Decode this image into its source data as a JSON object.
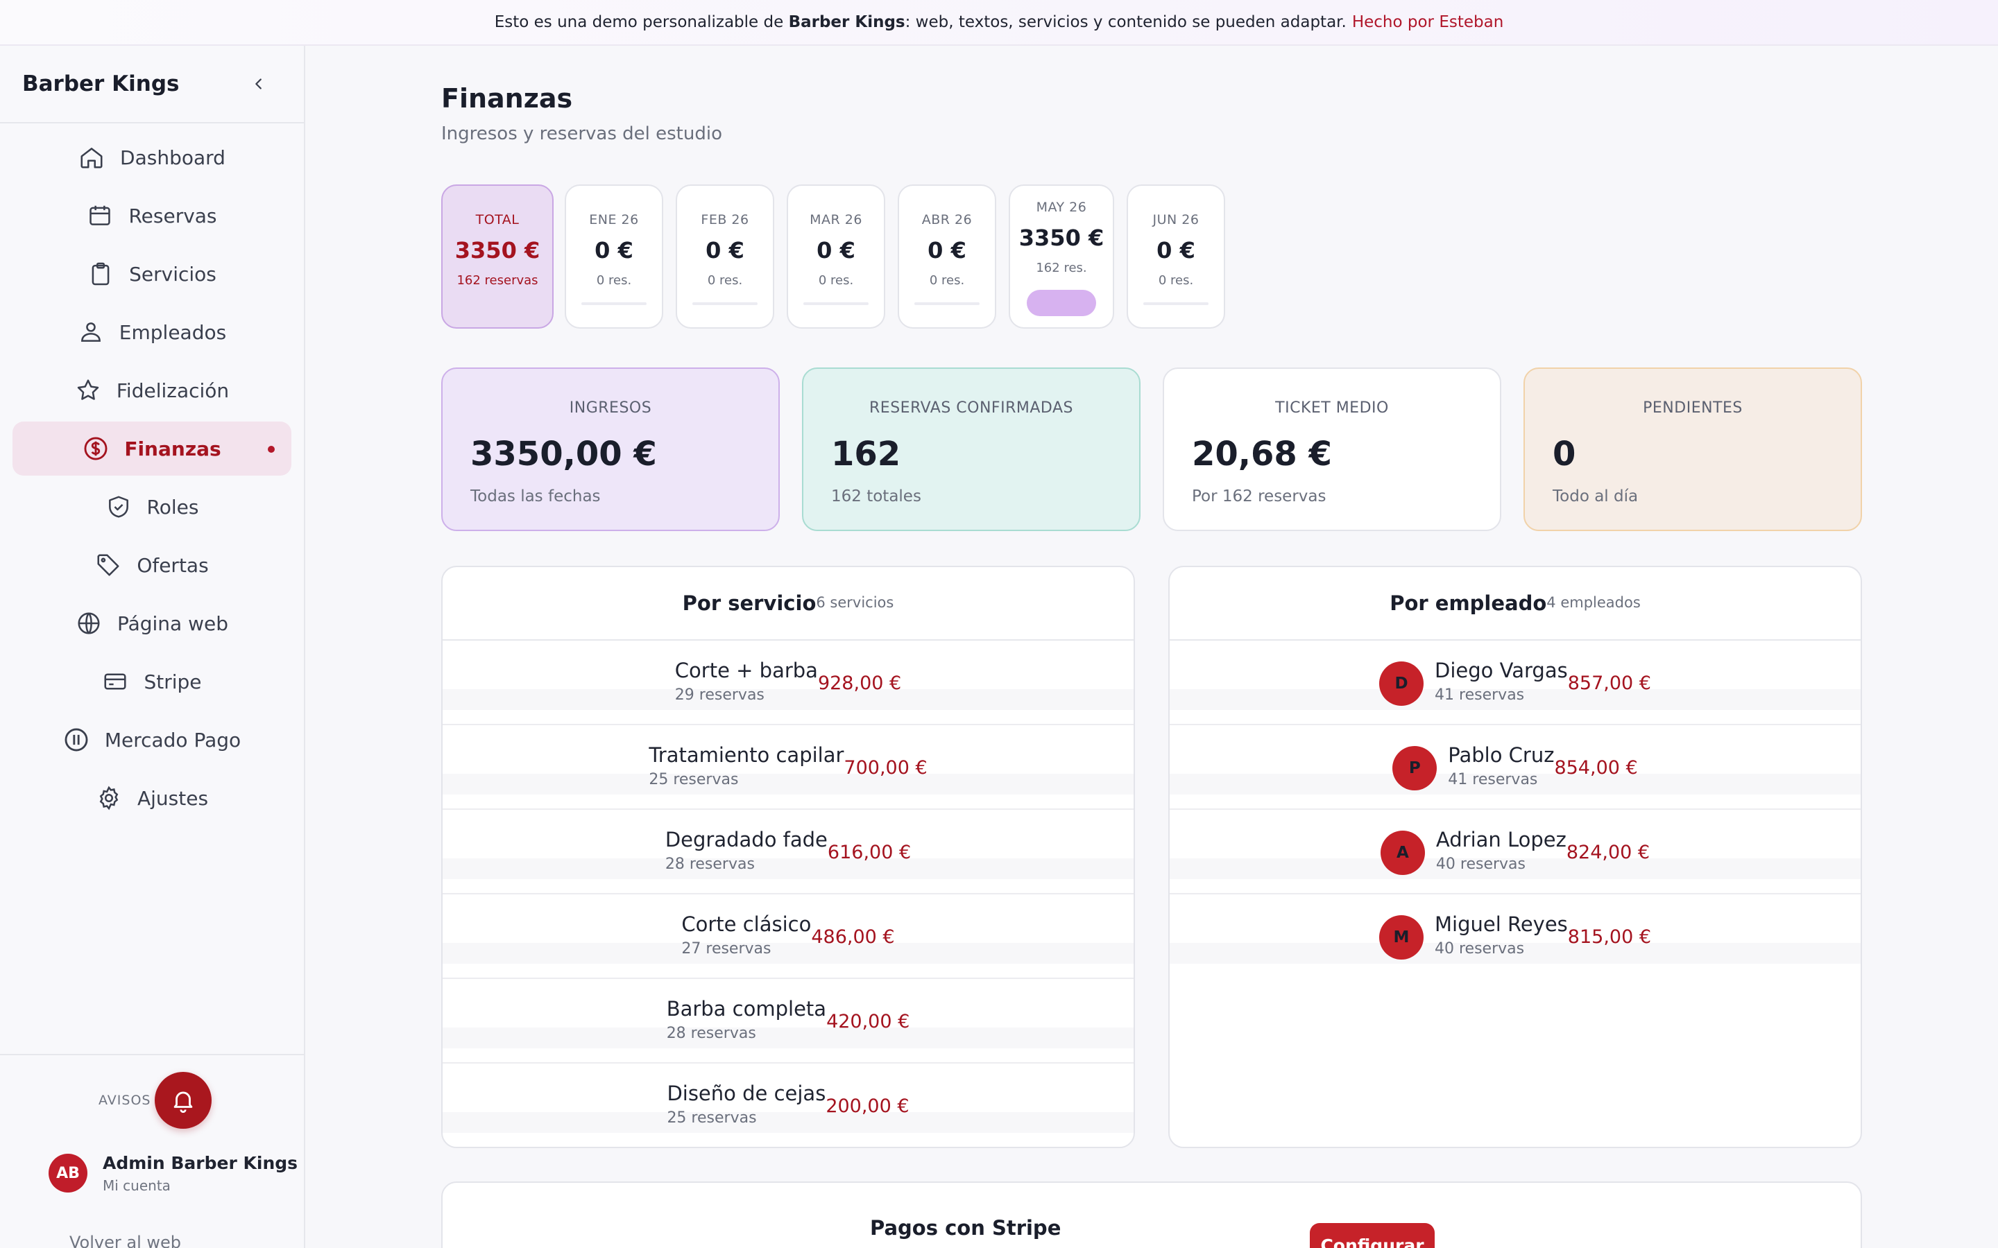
{
  "banner": {
    "prefix": "Esto es una demo personalizable de",
    "brand": "Barber Kings",
    "suffix": ": web, textos, servicios y contenido se pueden adaptar.",
    "author": "Hecho por Esteban"
  },
  "sidebar": {
    "brand": "Barber Kings",
    "items": [
      {
        "label": "Dashboard",
        "icon": "home-icon"
      },
      {
        "label": "Reservas",
        "icon": "calendar-icon"
      },
      {
        "label": "Servicios",
        "icon": "clipboard-icon"
      },
      {
        "label": "Empleados",
        "icon": "users-icon"
      },
      {
        "label": "Fidelización",
        "icon": "star-icon"
      },
      {
        "label": "Finanzas",
        "icon": "dollar-circle-icon",
        "active": true
      },
      {
        "label": "Roles",
        "icon": "shield-icon"
      },
      {
        "label": "Ofertas",
        "icon": "tag-icon"
      },
      {
        "label": "Página web",
        "icon": "globe-icon"
      },
      {
        "label": "Stripe",
        "icon": "credit-card-icon"
      },
      {
        "label": "Mercado Pago",
        "icon": "mercado-pago-icon"
      },
      {
        "label": "Ajustes",
        "icon": "gear-icon"
      }
    ],
    "avisos_label": "AVISOS",
    "account": {
      "initials": "AB",
      "name": "Admin Barber Kings",
      "sub": "Mi cuenta"
    },
    "volver": "Volver al web"
  },
  "header": {
    "title": "Finanzas",
    "subtitle": "Ingresos y reservas del estudio"
  },
  "months": [
    {
      "label": "TOTAL",
      "amount": "3350 €",
      "res": "162 reservas",
      "kind": "total"
    },
    {
      "label": "ENE 26",
      "amount": "0 €",
      "res": "0 res.",
      "kind": "month"
    },
    {
      "label": "FEB 26",
      "amount": "0 €",
      "res": "0 res.",
      "kind": "month"
    },
    {
      "label": "MAR 26",
      "amount": "0 €",
      "res": "0 res.",
      "kind": "month"
    },
    {
      "label": "ABR 26",
      "amount": "0 €",
      "res": "0 res.",
      "kind": "month"
    },
    {
      "label": "MAY 26",
      "amount": "3350 €",
      "res": "162 res.",
      "kind": "may"
    },
    {
      "label": "JUN 26",
      "amount": "0 €",
      "res": "0 res.",
      "kind": "month"
    }
  ],
  "stats": {
    "ingresos": {
      "label": "INGRESOS",
      "value": "3350,00 €",
      "sub": "Todas las fechas"
    },
    "reservas": {
      "label": "RESERVAS CONFIRMADAS",
      "value": "162",
      "sub": "162 totales"
    },
    "ticket": {
      "label": "TICKET MEDIO",
      "value": "20,68 €",
      "sub": "Por 162 reservas"
    },
    "pendientes": {
      "label": "PENDIENTES",
      "value": "0",
      "sub": "Todo al día"
    }
  },
  "por_servicio": {
    "title": "Por servicio",
    "count": "6 servicios",
    "rows": [
      {
        "name": "Corte + barba",
        "sub": "29 reservas",
        "amount": "928,00 €"
      },
      {
        "name": "Tratamiento capilar",
        "sub": "25 reservas",
        "amount": "700,00 €"
      },
      {
        "name": "Degradado fade",
        "sub": "28 reservas",
        "amount": "616,00 €"
      },
      {
        "name": "Corte clásico",
        "sub": "27 reservas",
        "amount": "486,00 €"
      },
      {
        "name": "Barba completa",
        "sub": "28 reservas",
        "amount": "420,00 €"
      },
      {
        "name": "Diseño de cejas",
        "sub": "25 reservas",
        "amount": "200,00 €"
      }
    ]
  },
  "por_empleado": {
    "title": "Por empleado",
    "count": "4 empleados",
    "rows": [
      {
        "initial": "D",
        "name": "Diego Vargas",
        "sub": "41 reservas",
        "amount": "857,00 €"
      },
      {
        "initial": "P",
        "name": "Pablo Cruz",
        "sub": "41 reservas",
        "amount": "854,00 €"
      },
      {
        "initial": "A",
        "name": "Adrian Lopez",
        "sub": "40 reservas",
        "amount": "824,00 €"
      },
      {
        "initial": "M",
        "name": "Miguel Reyes",
        "sub": "40 reservas",
        "amount": "815,00 €"
      }
    ]
  },
  "stripe": {
    "title": "Pagos con Stripe",
    "button": "Configurar"
  },
  "colors": {
    "accent": "#a4131f",
    "active_bg": "#f3e3ed",
    "avatar": "#c62229"
  }
}
